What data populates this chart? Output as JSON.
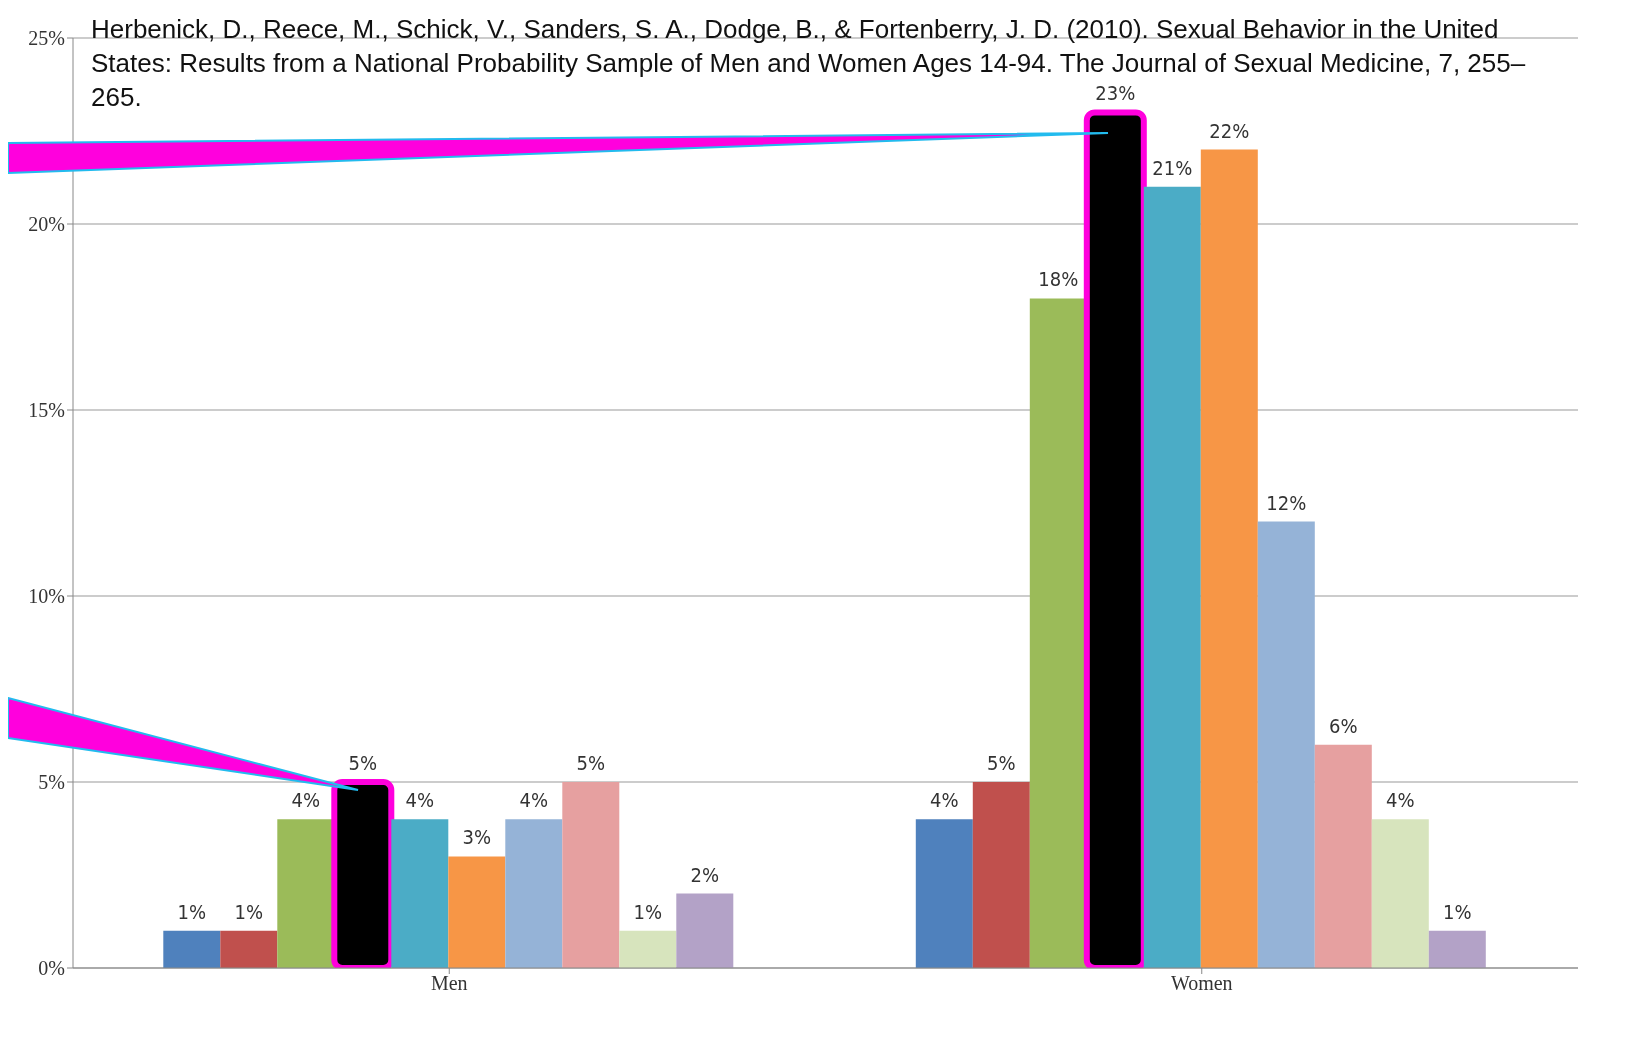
{
  "chart_data": {
    "type": "bar",
    "categories": [
      "Men",
      "Women"
    ],
    "series": [
      {
        "color": "#4f81bd",
        "values": [
          1,
          4
        ],
        "value_labels": [
          "1%",
          "4%"
        ]
      },
      {
        "color": "#c0504d",
        "values": [
          1,
          5
        ],
        "value_labels": [
          "1%",
          "5%"
        ]
      },
      {
        "color": "#9bbb59",
        "values": [
          4,
          18
        ],
        "value_labels": [
          "4%",
          "18%"
        ]
      },
      {
        "color": "#000000",
        "values": [
          5,
          23
        ],
        "value_labels": [
          "5%",
          "23%"
        ]
      },
      {
        "color": "#4bacc6",
        "values": [
          4,
          21
        ],
        "value_labels": [
          "4%",
          "21%"
        ]
      },
      {
        "color": "#f79646",
        "values": [
          3,
          22
        ],
        "value_labels": [
          "3%",
          "22%"
        ]
      },
      {
        "color": "#95b3d7",
        "values": [
          4,
          12
        ],
        "value_labels": [
          "4%",
          "12%"
        ]
      },
      {
        "color": "#e6a0a0",
        "values": [
          5,
          6
        ],
        "value_labels": [
          "5%",
          "6%"
        ]
      },
      {
        "color": "#d7e4bd",
        "values": [
          1,
          4
        ],
        "value_labels": [
          "1%",
          "4%"
        ]
      },
      {
        "color": "#b3a2c7",
        "values": [
          2,
          1
        ],
        "value_labels": [
          "2%",
          "1%"
        ]
      }
    ],
    "ylim": [
      0,
      25
    ],
    "yticks": [
      {
        "value": 0,
        "label": "0%"
      },
      {
        "value": 5,
        "label": "5%"
      },
      {
        "value": 10,
        "label": "10%"
      },
      {
        "value": 15,
        "label": "15%"
      },
      {
        "value": 20,
        "label": "20%"
      },
      {
        "value": 25,
        "label": "25%"
      }
    ],
    "grid": "y",
    "legend": false,
    "annotations": [
      "Herbenick, D., Reece, M., Schick, V., Sanders, S. A., Dodge, B., & Fortenberry, J. D. (2010). Sexual Behavior in the United States: Results from a National Probability Sample of Men and Women Ages 14-94. The Journal of Sexual Medicine, 7, 255–265."
    ]
  }
}
